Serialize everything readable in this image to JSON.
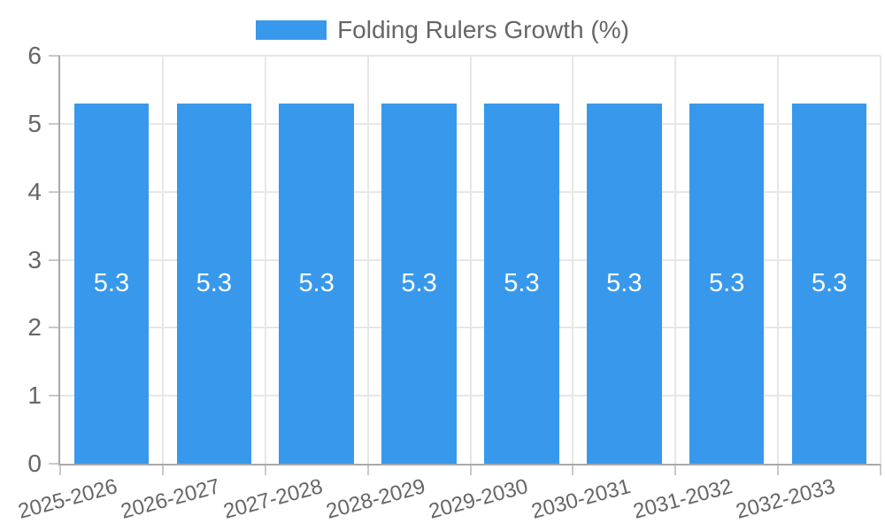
{
  "legend": {
    "label": "Folding Rulers Growth (%)"
  },
  "colors": {
    "bar": "#3899ec",
    "text": "#666666",
    "grid": "#e7e7e7",
    "axis": "#a9a9a9",
    "tick": "#c9c9c9",
    "value_label": "#ffffff",
    "background": "#ffffff"
  },
  "chart_data": {
    "type": "bar",
    "title": "Folding Rulers Growth (%)",
    "legend_entries": [
      "Folding Rulers Growth (%)"
    ],
    "legend_position": "top",
    "categories": [
      "2025-2026",
      "2026-2027",
      "2027-2028",
      "2028-2029",
      "2029-2030",
      "2030-2031",
      "2031-2032",
      "2032-2033"
    ],
    "values": [
      5.3,
      5.3,
      5.3,
      5.3,
      5.3,
      5.3,
      5.3,
      5.3
    ],
    "value_labels": [
      "5.3",
      "5.3",
      "5.3",
      "5.3",
      "5.3",
      "5.3",
      "5.3",
      "5.3"
    ],
    "xlabel": "",
    "ylabel": "",
    "ylim": [
      0,
      6
    ],
    "yticks": [
      0,
      1,
      2,
      3,
      4,
      5,
      6
    ],
    "ytick_labels": [
      "0",
      "1",
      "2",
      "3",
      "4",
      "5",
      "6"
    ],
    "grid": true,
    "x_label_rotation_deg": -15,
    "bar_color": "#3899ec",
    "value_label_color": "#ffffff"
  }
}
